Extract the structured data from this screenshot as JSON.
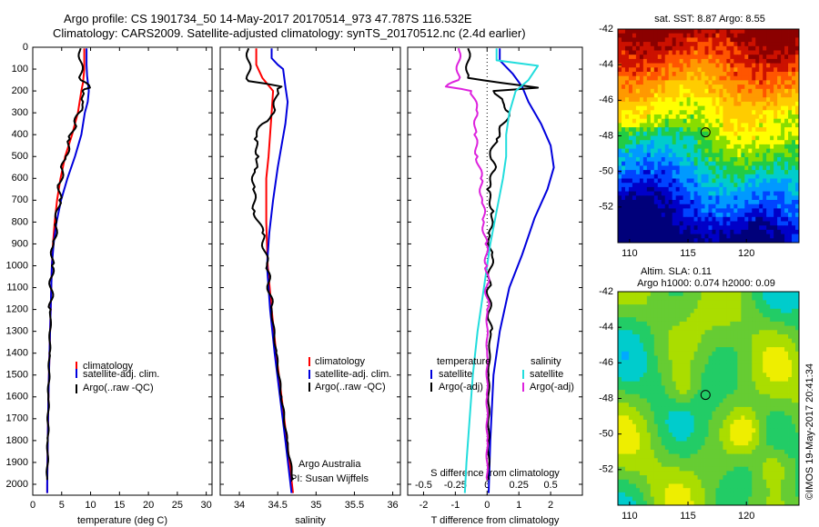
{
  "header": {
    "line1": "Argo profile: CS 1901734_50 14-May-2017 20170514_973 47.787S 116.532E",
    "line2": "Climatology: CARS2009. Satellite-adjusted climatology: synTS_20170512.nc (2.4d earlier)"
  },
  "colors": {
    "climatology": "#ff0000",
    "satellite": "#0000dd",
    "argo": "#000000",
    "sat_salinity": "#22dddd",
    "argo_salinity_diff": "#dd22dd"
  },
  "chart_data": [
    {
      "type": "line",
      "id": "temperature",
      "xlabel": "temperature (deg C)",
      "ylabel": "",
      "xlim": [
        0,
        31
      ],
      "ylim": [
        2050,
        0
      ],
      "xticks": [
        "0",
        "5",
        "10",
        "15",
        "20",
        "25",
        "30"
      ],
      "yticks": [
        "0",
        "100",
        "200",
        "300",
        "400",
        "500",
        "600",
        "700",
        "800",
        "900",
        "1000",
        "1100",
        "1200",
        "1300",
        "1400",
        "1500",
        "1600",
        "1700",
        "1800",
        "1900",
        "2000"
      ],
      "legend": [
        "climatology",
        "satellite-adj. clim.",
        "Argo(..raw -QC)"
      ],
      "series": [
        {
          "name": "climatology",
          "color": "#ff0000",
          "points": [
            [
              8.9,
              5
            ],
            [
              8.9,
              100
            ],
            [
              8.7,
              160
            ],
            [
              8.4,
              200
            ],
            [
              7.8,
              300
            ],
            [
              6.8,
              400
            ],
            [
              5.6,
              500
            ],
            [
              4.8,
              600
            ],
            [
              4.2,
              700
            ],
            [
              3.8,
              800
            ],
            [
              3.5,
              900
            ],
            [
              3.3,
              1000
            ],
            [
              3.1,
              1200
            ],
            [
              2.9,
              1400
            ],
            [
              2.7,
              1600
            ],
            [
              2.6,
              1800
            ],
            [
              2.5,
              2000
            ],
            [
              2.5,
              2040
            ]
          ]
        },
        {
          "name": "satellite-adj. clim.",
          "color": "#0000dd",
          "points": [
            [
              9.3,
              5
            ],
            [
              9.3,
              80
            ],
            [
              9.4,
              130
            ],
            [
              9.7,
              200
            ],
            [
              9.5,
              250
            ],
            [
              9.0,
              300
            ],
            [
              8.4,
              400
            ],
            [
              7.3,
              500
            ],
            [
              6.0,
              600
            ],
            [
              4.9,
              700
            ],
            [
              4.1,
              800
            ],
            [
              3.6,
              900
            ],
            [
              3.3,
              1000
            ],
            [
              3.1,
              1200
            ],
            [
              2.9,
              1400
            ],
            [
              2.7,
              1600
            ],
            [
              2.6,
              1800
            ],
            [
              2.5,
              2000
            ],
            [
              2.5,
              2040
            ]
          ]
        },
        {
          "name": "Argo(..raw -QC)",
          "color": "#000000",
          "points": [
            [
              8.3,
              5
            ],
            [
              8.3,
              150
            ],
            [
              9.9,
              185
            ],
            [
              8.6,
              200
            ],
            [
              8.7,
              250
            ],
            [
              8.0,
              300
            ],
            [
              7.3,
              350
            ],
            [
              6.4,
              420
            ],
            [
              5.7,
              500
            ],
            [
              5.1,
              560
            ],
            [
              4.7,
              620
            ],
            [
              4.6,
              700
            ],
            [
              4.1,
              800
            ],
            [
              3.6,
              900
            ],
            [
              3.3,
              1000
            ],
            [
              3.1,
              1200
            ],
            [
              2.9,
              1400
            ],
            [
              2.7,
              1600
            ],
            [
              2.6,
              1800
            ],
            [
              2.5,
              1980
            ]
          ]
        }
      ]
    },
    {
      "type": "line",
      "id": "salinity",
      "xlabel": "salinity",
      "ylabel": "",
      "xlim": [
        33.75,
        36.1
      ],
      "ylim": [
        2050,
        0
      ],
      "xticks": [
        "34",
        "34.5",
        "35",
        "35.5",
        "36"
      ],
      "legend": [
        "climatology",
        "satellite-adj. clim.",
        "Argo(..raw -QC)"
      ],
      "annotation": [
        "Argo Australia",
        "PI: Susan Wijffels"
      ],
      "series": [
        {
          "name": "climatology",
          "color": "#ff0000",
          "points": [
            [
              34.22,
              5
            ],
            [
              34.22,
              80
            ],
            [
              34.3,
              140
            ],
            [
              34.44,
              200
            ],
            [
              34.42,
              300
            ],
            [
              34.4,
              400
            ],
            [
              34.38,
              500
            ],
            [
              34.35,
              600
            ],
            [
              34.35,
              800
            ],
            [
              34.37,
              1000
            ],
            [
              34.42,
              1200
            ],
            [
              34.48,
              1400
            ],
            [
              34.55,
              1600
            ],
            [
              34.62,
              1800
            ],
            [
              34.7,
              2040
            ]
          ]
        },
        {
          "name": "satellite-adj. clim.",
          "color": "#0000dd",
          "points": [
            [
              34.42,
              5
            ],
            [
              34.42,
              50
            ],
            [
              34.5,
              80
            ],
            [
              34.57,
              100
            ],
            [
              34.6,
              180
            ],
            [
              34.63,
              250
            ],
            [
              34.6,
              350
            ],
            [
              34.55,
              450
            ],
            [
              34.5,
              550
            ],
            [
              34.44,
              700
            ],
            [
              34.39,
              850
            ],
            [
              34.36,
              1000
            ],
            [
              34.4,
              1200
            ],
            [
              34.46,
              1400
            ],
            [
              34.53,
              1600
            ],
            [
              34.6,
              1800
            ],
            [
              34.68,
              2040
            ]
          ]
        },
        {
          "name": "Argo(..raw -QC)",
          "color": "#000000",
          "points": [
            [
              34.12,
              5
            ],
            [
              34.12,
              155
            ],
            [
              34.55,
              180
            ],
            [
              34.5,
              200
            ],
            [
              34.45,
              300
            ],
            [
              34.3,
              350
            ],
            [
              34.2,
              420
            ],
            [
              34.25,
              500
            ],
            [
              34.2,
              560
            ],
            [
              34.18,
              650
            ],
            [
              34.2,
              750
            ],
            [
              34.3,
              850
            ],
            [
              34.36,
              1000
            ],
            [
              34.42,
              1200
            ],
            [
              34.48,
              1400
            ],
            [
              34.55,
              1600
            ],
            [
              34.62,
              1800
            ],
            [
              34.7,
              1980
            ]
          ]
        }
      ]
    },
    {
      "type": "line",
      "id": "difference",
      "xlabel": "T difference from climatology",
      "xlabel_top": "S difference from climatology",
      "xlim": [
        -2.5,
        3.0
      ],
      "ylim": [
        2050,
        0
      ],
      "xticks": [
        "-2",
        "-1",
        "0",
        "1",
        "2"
      ],
      "xticks_top": [
        "-0.5",
        "-0.25",
        "0",
        "0.25",
        "0.5"
      ],
      "legend_header_left": "temperature",
      "legend_header_right": "salinity",
      "legend": [
        "satellite",
        "Argo(-adj)",
        "satellite",
        "Argo(-adj)"
      ],
      "series": [
        {
          "name": "satellite",
          "group": "temperature",
          "color": "#0000dd",
          "points": [
            [
              0.4,
              5
            ],
            [
              0.4,
              60
            ],
            [
              0.8,
              120
            ],
            [
              1.1,
              180
            ],
            [
              1.3,
              250
            ],
            [
              1.7,
              350
            ],
            [
              2.0,
              450
            ],
            [
              2.1,
              550
            ],
            [
              1.9,
              650
            ],
            [
              1.5,
              780
            ],
            [
              1.1,
              950
            ],
            [
              0.7,
              1100
            ],
            [
              0.4,
              1300
            ],
            [
              0.2,
              1500
            ],
            [
              0.1,
              1800
            ],
            [
              0.05,
              2040
            ]
          ]
        },
        {
          "name": "Argo(-adj)",
          "group": "temperature",
          "color": "#000000",
          "points": [
            [
              -0.6,
              5
            ],
            [
              -0.6,
              140
            ],
            [
              1.6,
              185
            ],
            [
              0.2,
              200
            ],
            [
              0.5,
              250
            ],
            [
              0.7,
              300
            ],
            [
              0.5,
              350
            ],
            [
              0.3,
              420
            ],
            [
              0.1,
              500
            ],
            [
              0.25,
              560
            ],
            [
              0.0,
              650
            ],
            [
              0.2,
              750
            ],
            [
              0.05,
              850
            ],
            [
              0.15,
              950
            ],
            [
              0.05,
              1100
            ],
            [
              0.1,
              1300
            ],
            [
              0.05,
              1500
            ],
            [
              0.05,
              1800
            ],
            [
              0.05,
              1980
            ]
          ]
        },
        {
          "name": "satellite",
          "group": "salinity",
          "color": "#22dddd",
          "points": [
            [
              0.3,
              5
            ],
            [
              0.3,
              60
            ],
            [
              1.6,
              85
            ],
            [
              1.3,
              150
            ],
            [
              0.9,
              200
            ],
            [
              0.7,
              300
            ],
            [
              0.6,
              400
            ],
            [
              0.6,
              500
            ],
            [
              0.5,
              600
            ],
            [
              0.3,
              750
            ],
            [
              0.1,
              900
            ],
            [
              -0.1,
              1100
            ],
            [
              -0.3,
              1300
            ],
            [
              -0.45,
              1500
            ],
            [
              -0.55,
              1700
            ],
            [
              -0.65,
              1900
            ],
            [
              -0.7,
              2040
            ]
          ]
        },
        {
          "name": "Argo(-adj)",
          "group": "salinity",
          "color": "#dd22dd",
          "points": [
            [
              -0.9,
              5
            ],
            [
              -0.9,
              150
            ],
            [
              -1.3,
              180
            ],
            [
              -0.5,
              200
            ],
            [
              -0.3,
              300
            ],
            [
              -0.4,
              400
            ],
            [
              -0.3,
              500
            ],
            [
              -0.2,
              600
            ],
            [
              -0.15,
              700
            ],
            [
              -0.1,
              800
            ],
            [
              -0.05,
              900
            ],
            [
              0.0,
              1000
            ],
            [
              0.0,
              1200
            ],
            [
              0.0,
              1400
            ],
            [
              0.0,
              1600
            ],
            [
              0.0,
              1800
            ],
            [
              0.0,
              1980
            ]
          ]
        }
      ]
    },
    {
      "type": "heatmap",
      "id": "sst-map",
      "title": "sat. SST: 8.87  Argo: 8.55",
      "xlim": [
        109,
        124.5
      ],
      "ylim": [
        -54,
        -42
      ],
      "xticks": [
        "110",
        "115",
        "120"
      ],
      "yticks": [
        "-42",
        "-44",
        "-46",
        "-48",
        "-50",
        "-52"
      ],
      "marker": {
        "lon": 116.5,
        "lat": -47.8
      }
    },
    {
      "type": "heatmap",
      "id": "sla-map",
      "title_line1": "Altim. SLA: 0.11",
      "title_line2": "Argo h1000: 0.074  h2000: 0.09",
      "xlim": [
        109,
        124.5
      ],
      "ylim": [
        -54,
        -42
      ],
      "xticks": [
        "110",
        "115",
        "120"
      ],
      "yticks": [
        "-42",
        "-44",
        "-46",
        "-48",
        "-50",
        "-52"
      ],
      "marker": {
        "lon": 116.5,
        "lat": -47.8
      }
    }
  ],
  "footer": {
    "credit": "©IMOS 19-May-2017 20:41:34"
  }
}
